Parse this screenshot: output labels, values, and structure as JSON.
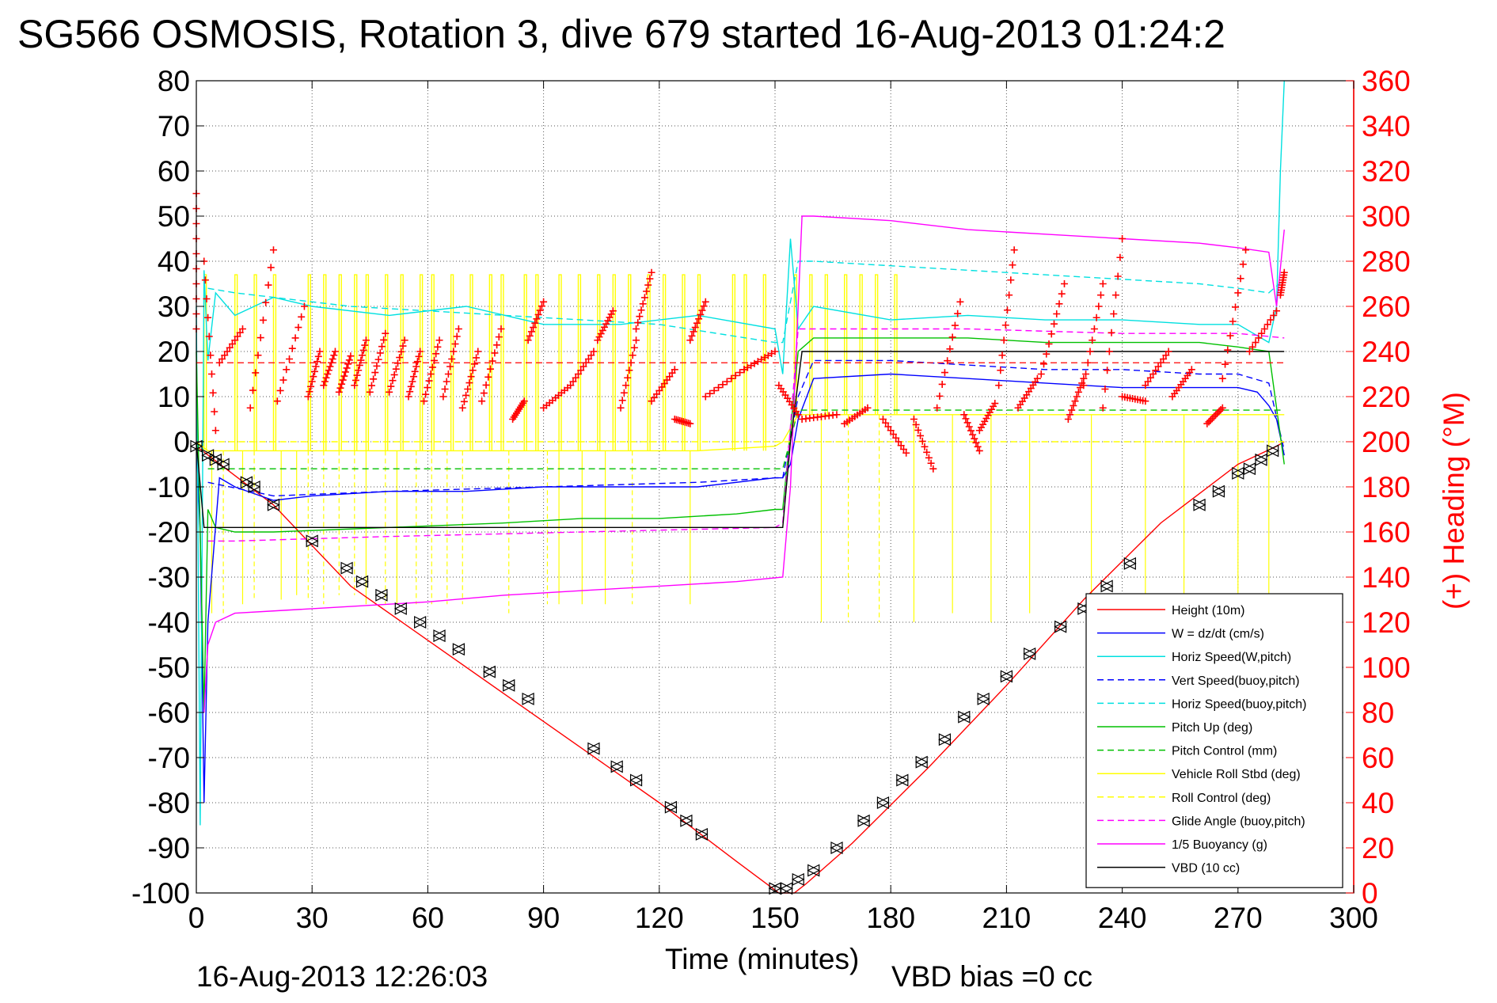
{
  "chart_data": {
    "type": "line",
    "title": "SG566 OSMOSIS, Rotation 3, dive 679 started 16-Aug-2013 01:24:2",
    "xlabel": "Time (minutes)",
    "ylabel": "",
    "y2label": "(+) Heading (°M)",
    "xlim": [
      0,
      300
    ],
    "ylim": [
      -100,
      80
    ],
    "y2lim": [
      0,
      360
    ],
    "xticks": [
      "0",
      "30",
      "60",
      "90",
      "120",
      "150",
      "180",
      "210",
      "240",
      "270",
      "300"
    ],
    "yticks": [
      "-100",
      "-90",
      "-80",
      "-70",
      "-60",
      "-50",
      "-40",
      "-30",
      "-20",
      "-10",
      "0",
      "10",
      "20",
      "30",
      "40",
      "50",
      "60",
      "70",
      "80"
    ],
    "y2ticks": [
      "0",
      "20",
      "40",
      "60",
      "80",
      "100",
      "120",
      "140",
      "160",
      "180",
      "200",
      "220",
      "240",
      "260",
      "280",
      "300",
      "320",
      "340",
      "360"
    ],
    "grid": true,
    "legend_position": "bottom-right",
    "footer_left": "16-Aug-2013 12:26:03",
    "footer_right": "VBD bias =0 cc",
    "series": [
      {
        "name": "Height (10m)",
        "color": "#ff0000",
        "style": "solid",
        "x": [
          0,
          20,
          40,
          60,
          80,
          100,
          120,
          140,
          151,
          155,
          158,
          170,
          190,
          210,
          230,
          250,
          270,
          280,
          282
        ],
        "y": [
          -1,
          -14,
          -32,
          -44,
          -56,
          -68,
          -80,
          -93,
          -100,
          -100,
          -98,
          -89,
          -72,
          -54,
          -35,
          -18,
          -5,
          -1,
          0
        ]
      },
      {
        "name": "W = dz/dt (cm/s)",
        "color": "#0000ff",
        "style": "solid",
        "x": [
          0,
          1,
          2,
          3,
          6,
          10,
          20,
          30,
          50,
          70,
          90,
          110,
          130,
          150,
          152,
          154,
          156,
          160,
          180,
          200,
          220,
          240,
          260,
          270,
          275,
          278,
          280,
          282
        ],
        "y": [
          0,
          -20,
          -80,
          -40,
          -8,
          -10,
          -13,
          -12,
          -11,
          -11,
          -10,
          -10,
          -10,
          -8,
          -8,
          -5,
          5,
          14,
          15,
          14,
          13,
          12,
          12,
          12,
          11,
          8,
          5,
          -3
        ]
      },
      {
        "name": "Horiz Speed(W,pitch)",
        "color": "#00e0e0",
        "style": "solid",
        "x": [
          0,
          1,
          2,
          3,
          5,
          10,
          20,
          30,
          50,
          70,
          90,
          110,
          130,
          150,
          152,
          154,
          156,
          160,
          180,
          200,
          220,
          240,
          260,
          270,
          278,
          280,
          281,
          282
        ],
        "y": [
          30,
          -85,
          38,
          18,
          33,
          28,
          32,
          30,
          28,
          30,
          26,
          26,
          28,
          25,
          15,
          45,
          25,
          30,
          27,
          28,
          27,
          27,
          26,
          26,
          22,
          30,
          60,
          80
        ]
      },
      {
        "name": "Vert Speed(buoy,pitch)",
        "color": "#0000ff",
        "style": "dashed",
        "x": [
          3,
          20,
          50,
          90,
          130,
          150,
          152,
          156,
          160,
          180,
          200,
          220,
          240,
          260,
          270,
          278,
          282
        ],
        "y": [
          -9,
          -12,
          -11,
          -10,
          -9,
          -8,
          -8,
          10,
          18,
          18,
          17,
          16,
          16,
          15,
          15,
          13,
          -2
        ]
      },
      {
        "name": "Horiz Speed(buoy,pitch)",
        "color": "#00e0e0",
        "style": "dashed",
        "x": [
          3,
          10,
          20,
          40,
          60,
          80,
          100,
          120,
          150,
          152,
          156,
          160,
          180,
          200,
          220,
          240,
          260,
          270,
          278,
          282
        ],
        "y": [
          34,
          33,
          32,
          30,
          29,
          28,
          27,
          26,
          22,
          22,
          40,
          40,
          39,
          38,
          37,
          36,
          35,
          34,
          33,
          36
        ]
      },
      {
        "name": "Pitch Up (deg)",
        "color": "#00c000",
        "style": "solid",
        "x": [
          0,
          2,
          3,
          5,
          10,
          20,
          50,
          80,
          100,
          120,
          140,
          150,
          152,
          156,
          160,
          180,
          200,
          220,
          240,
          260,
          270,
          278,
          282
        ],
        "y": [
          20,
          -60,
          -15,
          -19,
          -20,
          -20,
          -19,
          -18,
          -17,
          -17,
          -16,
          -15,
          -15,
          20,
          23,
          23,
          23,
          22,
          22,
          22,
          21,
          20,
          -5
        ]
      },
      {
        "name": "Pitch Control (mm)",
        "color": "#00c000",
        "style": "dashed",
        "x": [
          3,
          150,
          152,
          156,
          282
        ],
        "y": [
          -6,
          -6,
          -6,
          7,
          7
        ]
      },
      {
        "name": "Vehicle Roll Stbd (deg)",
        "color": "#ffff00",
        "style": "solid",
        "x": [
          0,
          3,
          10,
          50,
          100,
          130,
          150,
          152,
          156,
          160,
          200,
          240,
          270,
          280,
          282
        ],
        "y": [
          0,
          -2,
          -2,
          -2,
          -2,
          -2,
          -1,
          0,
          6,
          6,
          6,
          6,
          6,
          6,
          6
        ]
      },
      {
        "name": "Roll Control (deg)",
        "color": "#ffff00",
        "style": "dashed",
        "x": [
          3,
          150,
          152,
          156,
          282
        ],
        "y": [
          0,
          0,
          0,
          0,
          0
        ]
      },
      {
        "name": "Glide Angle (buoy,pitch)",
        "color": "#ff00ff",
        "style": "dashed",
        "x": [
          3,
          10,
          50,
          100,
          150,
          152,
          156,
          160,
          200,
          240,
          270,
          282
        ],
        "y": [
          -22,
          -22,
          -21,
          -20,
          -19,
          -18,
          25,
          25,
          25,
          24,
          24,
          23
        ]
      },
      {
        "name": "1/5 Buoyancy (g)",
        "color": "#ff00ff",
        "style": "solid",
        "x": [
          2,
          3,
          5,
          10,
          20,
          40,
          60,
          80,
          100,
          120,
          140,
          152,
          154,
          157,
          160,
          180,
          200,
          220,
          240,
          260,
          270,
          278,
          280,
          282
        ],
        "y": [
          -60,
          -45,
          -40,
          -38,
          -37.5,
          -36.5,
          -35.5,
          -34,
          -33,
          -32,
          -31,
          -30,
          -10,
          50,
          50,
          49,
          47,
          46,
          45,
          44,
          43,
          42,
          30,
          47
        ]
      },
      {
        "name": "VBD (10 cc)",
        "color": "#000000",
        "style": "solid",
        "x": [
          0,
          2,
          3,
          152,
          154,
          157,
          282
        ],
        "y": [
          0,
          -19,
          -19,
          -19,
          0,
          20,
          20
        ]
      }
    ],
    "height_markers": {
      "x": [
        0,
        3,
        5,
        7,
        13,
        15,
        20,
        30,
        39,
        43,
        48,
        53,
        58,
        63,
        68,
        76,
        81,
        86,
        103,
        109,
        114,
        123,
        127,
        131,
        150,
        153,
        156,
        160,
        166,
        173,
        178,
        183,
        188,
        194,
        199,
        204,
        210,
        216,
        224,
        230,
        236,
        242,
        260,
        265,
        270,
        273,
        276,
        279
      ],
      "y": [
        -1,
        -3,
        -4,
        -5,
        -9,
        -10,
        -14,
        -22,
        -28,
        -31,
        -34,
        -37,
        -40,
        -43,
        -46,
        -51,
        -54,
        -57,
        -68,
        -72,
        -75,
        -81,
        -84,
        -87,
        -99,
        -99,
        -97,
        -95,
        -90,
        -84,
        -80,
        -75,
        -71,
        -66,
        -61,
        -57,
        -52,
        -47,
        -41,
        -37,
        -32,
        -27,
        -14,
        -11,
        -7,
        -6,
        -4,
        -2
      ]
    },
    "heading": {
      "color": "#ff0000",
      "reference_value": 235,
      "segments": [
        {
          "x0": 0,
          "y0": 310,
          "x1": 0,
          "y1": 250
        },
        {
          "x0": 2,
          "y0": 280,
          "x1": 5,
          "y1": 205
        },
        {
          "x0": 6,
          "y0": 235,
          "x1": 12,
          "y1": 250
        },
        {
          "x0": 14,
          "y0": 215,
          "x1": 20,
          "y1": 285
        },
        {
          "x0": 21,
          "y0": 218,
          "x1": 28,
          "y1": 260
        },
        {
          "x0": 29,
          "y0": 220,
          "x1": 32,
          "y1": 240
        },
        {
          "x0": 33,
          "y0": 225,
          "x1": 36,
          "y1": 240
        },
        {
          "x0": 37,
          "y0": 222,
          "x1": 40,
          "y1": 238
        },
        {
          "x0": 41,
          "y0": 225,
          "x1": 44,
          "y1": 245
        },
        {
          "x0": 45,
          "y0": 222,
          "x1": 49,
          "y1": 248
        },
        {
          "x0": 50,
          "y0": 222,
          "x1": 54,
          "y1": 245
        },
        {
          "x0": 55,
          "y0": 220,
          "x1": 58,
          "y1": 240
        },
        {
          "x0": 59,
          "y0": 218,
          "x1": 63,
          "y1": 245
        },
        {
          "x0": 64,
          "y0": 220,
          "x1": 68,
          "y1": 250
        },
        {
          "x0": 69,
          "y0": 215,
          "x1": 73,
          "y1": 240
        },
        {
          "x0": 74,
          "y0": 218,
          "x1": 79,
          "y1": 250
        },
        {
          "x0": 82,
          "y0": 210,
          "x1": 85,
          "y1": 218
        },
        {
          "x0": 86,
          "y0": 245,
          "x1": 90,
          "y1": 262
        },
        {
          "x0": 90,
          "y0": 215,
          "x1": 97,
          "y1": 225
        },
        {
          "x0": 97,
          "y0": 225,
          "x1": 103,
          "y1": 240
        },
        {
          "x0": 104,
          "y0": 245,
          "x1": 108,
          "y1": 258
        },
        {
          "x0": 110,
          "y0": 215,
          "x1": 114,
          "y1": 245
        },
        {
          "x0": 114,
          "y0": 250,
          "x1": 118,
          "y1": 275
        },
        {
          "x0": 118,
          "y0": 218,
          "x1": 124,
          "y1": 232
        },
        {
          "x0": 124,
          "y0": 210,
          "x1": 128,
          "y1": 208
        },
        {
          "x0": 128,
          "y0": 245,
          "x1": 132,
          "y1": 262
        },
        {
          "x0": 132,
          "y0": 220,
          "x1": 142,
          "y1": 232
        },
        {
          "x0": 142,
          "y0": 232,
          "x1": 150,
          "y1": 240
        },
        {
          "x0": 151,
          "y0": 225,
          "x1": 156,
          "y1": 212
        },
        {
          "x0": 157,
          "y0": 210,
          "x1": 166,
          "y1": 212
        },
        {
          "x0": 168,
          "y0": 208,
          "x1": 174,
          "y1": 215
        },
        {
          "x0": 178,
          "y0": 210,
          "x1": 184,
          "y1": 195
        },
        {
          "x0": 186,
          "y0": 210,
          "x1": 191,
          "y1": 188
        },
        {
          "x0": 192,
          "y0": 215,
          "x1": 198,
          "y1": 262
        },
        {
          "x0": 199,
          "y0": 212,
          "x1": 203,
          "y1": 196
        },
        {
          "x0": 203,
          "y0": 205,
          "x1": 207,
          "y1": 217
        },
        {
          "x0": 208,
          "y0": 225,
          "x1": 212,
          "y1": 285
        },
        {
          "x0": 213,
          "y0": 215,
          "x1": 218,
          "y1": 228
        },
        {
          "x0": 219,
          "y0": 230,
          "x1": 225,
          "y1": 270
        },
        {
          "x0": 226,
          "y0": 210,
          "x1": 230,
          "y1": 228
        },
        {
          "x0": 230,
          "y0": 225,
          "x1": 235,
          "y1": 270
        },
        {
          "x0": 235,
          "y0": 215,
          "x1": 240,
          "y1": 290
        },
        {
          "x0": 240,
          "y0": 220,
          "x1": 246,
          "y1": 218
        },
        {
          "x0": 246,
          "y0": 225,
          "x1": 252,
          "y1": 240
        },
        {
          "x0": 253,
          "y0": 220,
          "x1": 258,
          "y1": 232
        },
        {
          "x0": 262,
          "y0": 208,
          "x1": 266,
          "y1": 215
        },
        {
          "x0": 266,
          "y0": 228,
          "x1": 272,
          "y1": 285
        },
        {
          "x0": 273,
          "y0": 240,
          "x1": 280,
          "y1": 258
        },
        {
          "x0": 281,
          "y0": 265,
          "x1": 282,
          "y1": 275
        }
      ]
    },
    "roll_spikes": {
      "up": [
        2,
        10,
        15,
        20,
        29,
        33,
        37,
        41,
        44,
        49,
        53,
        58,
        61,
        66,
        71,
        76,
        79,
        85,
        88,
        94,
        99,
        104,
        108,
        112,
        117,
        121,
        126,
        130,
        139,
        142,
        147,
        155,
        159,
        163,
        168,
        172,
        176,
        181
      ],
      "down": [
        4,
        7,
        12,
        15,
        22,
        26,
        29,
        33,
        37,
        41,
        44,
        49,
        52,
        57,
        61,
        65,
        69,
        81,
        91,
        94,
        100,
        106,
        113,
        128,
        162,
        169,
        177,
        186,
        196,
        206,
        216,
        232,
        246,
        256,
        270,
        278
      ],
      "down_values": [
        -38,
        -38,
        -36,
        -35,
        -35,
        -34,
        -35,
        -36,
        -34,
        -34,
        -36,
        -36,
        -36,
        -36,
        -36,
        -36,
        -36,
        -38,
        -36,
        -36,
        -36,
        -36,
        -36,
        -36,
        -40,
        -40,
        -40,
        -40,
        -38,
        -40,
        -38,
        -40,
        -40,
        -40,
        -40,
        -40
      ]
    }
  }
}
